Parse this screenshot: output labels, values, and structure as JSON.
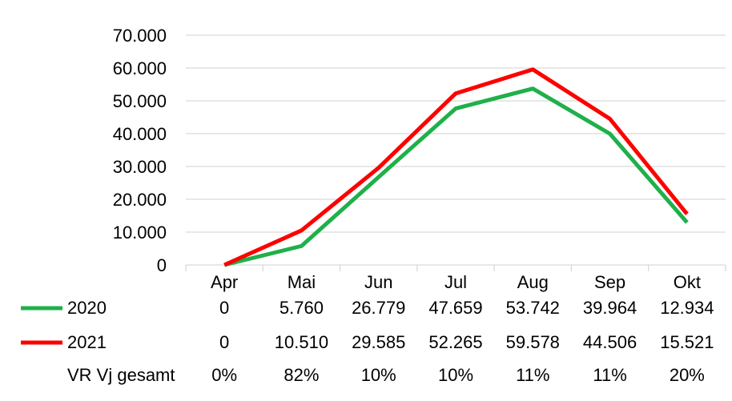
{
  "chart_data": {
    "type": "line",
    "categories": [
      "Apr",
      "Mai",
      "Jun",
      "Jul",
      "Aug",
      "Sep",
      "Okt"
    ],
    "yticks": [
      "0",
      "10.000",
      "20.000",
      "30.000",
      "40.000",
      "50.000",
      "60.000",
      "70.000"
    ],
    "ylim": [
      0,
      70000
    ],
    "grid": true,
    "series": [
      {
        "name": "2020",
        "color": "#1fb04a",
        "values": [
          0,
          5760,
          26779,
          47659,
          53742,
          39964,
          12934
        ],
        "labels": [
          "0",
          "5.760",
          "26.779",
          "47.659",
          "53.742",
          "39.964",
          "12.934"
        ]
      },
      {
        "name": "2021",
        "color": "#ff0000",
        "values": [
          0,
          10510,
          29585,
          52265,
          59578,
          44506,
          15521
        ],
        "labels": [
          "0",
          "10.510",
          "29.585",
          "52.265",
          "59.578",
          "44.506",
          "15.521"
        ]
      }
    ],
    "table_extra_row": {
      "name": "VR Vj gesamt",
      "labels": [
        "0%",
        "82%",
        "10%",
        "10%",
        "11%",
        "11%",
        "20%"
      ]
    },
    "gridline_color": "#d9d9d9"
  }
}
